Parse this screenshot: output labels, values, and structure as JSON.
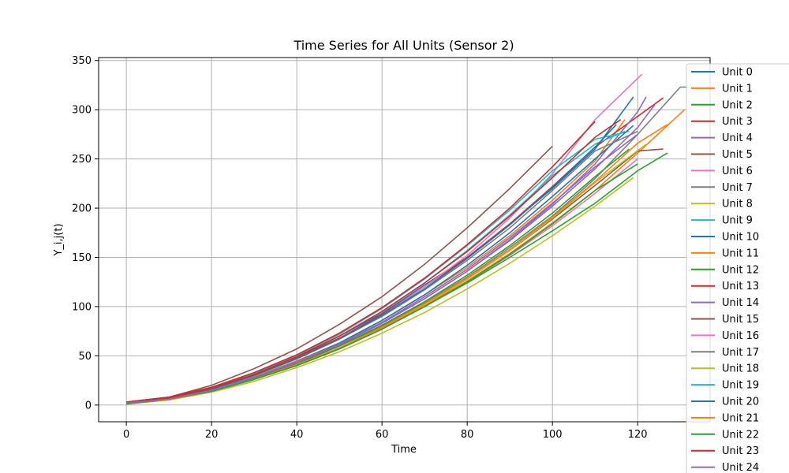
{
  "chart_data": {
    "type": "line",
    "title": "Time Series for All Units (Sensor 2)",
    "xlabel": "Time",
    "ylabel": "Y_i,j(t)",
    "xlim": [
      -6.5,
      137
    ],
    "ylim": [
      -17,
      353
    ],
    "xticks": [
      0,
      20,
      40,
      60,
      80,
      100,
      120
    ],
    "yticks": [
      0,
      50,
      100,
      150,
      200,
      250,
      300,
      350
    ],
    "grid": true,
    "legend_position": "right",
    "series": [
      {
        "name": "Unit 0",
        "color": "#1f77b4",
        "x": [
          0,
          10,
          20,
          30,
          40,
          50,
          60,
          70,
          80,
          90,
          100,
          110,
          119
        ],
        "y": [
          2,
          7,
          18,
          32,
          49,
          70,
          93,
          122,
          150,
          184,
          220,
          260,
          313
        ]
      },
      {
        "name": "Unit 1",
        "color": "#ff7f0e",
        "x": [
          0,
          10,
          20,
          30,
          40,
          50,
          60,
          70,
          80,
          90,
          100,
          110,
          117
        ],
        "y": [
          2,
          6,
          16,
          29,
          45,
          63,
          86,
          112,
          140,
          172,
          208,
          248,
          290
        ]
      },
      {
        "name": "Unit 2",
        "color": "#2ca02c",
        "x": [
          0,
          10,
          20,
          30,
          40,
          50,
          60,
          70,
          80,
          90,
          100,
          110,
          120,
          127
        ],
        "y": [
          2,
          6,
          14,
          26,
          40,
          57,
          78,
          100,
          124,
          150,
          177,
          205,
          238,
          256
        ]
      },
      {
        "name": "Unit 3",
        "color": "#d62728",
        "x": [
          0,
          10,
          20,
          30,
          40,
          50,
          60,
          70,
          80,
          90,
          100,
          110,
          126
        ],
        "y": [
          3,
          8,
          17,
          31,
          48,
          68,
          92,
          120,
          150,
          184,
          222,
          262,
          312
        ]
      },
      {
        "name": "Unit 4",
        "color": "#9467bd",
        "x": [
          0,
          10,
          20,
          30,
          40,
          50,
          60,
          70,
          80,
          90,
          100,
          110,
          120,
          122
        ],
        "y": [
          1,
          6,
          15,
          28,
          43,
          61,
          83,
          108,
          136,
          168,
          204,
          245,
          298,
          313
        ]
      },
      {
        "name": "Unit 5",
        "color": "#8c564b",
        "x": [
          0,
          10,
          20,
          30,
          40,
          50,
          60,
          70,
          80,
          90,
          100
        ],
        "y": [
          3,
          8,
          20,
          37,
          57,
          82,
          110,
          143,
          180,
          220,
          263
        ]
      },
      {
        "name": "Unit 6",
        "color": "#e377c2",
        "x": [
          0,
          10,
          20,
          30,
          40,
          50,
          60,
          70,
          80,
          90,
          100,
          110,
          121
        ],
        "y": [
          2,
          7,
          16,
          30,
          47,
          67,
          91,
          120,
          152,
          190,
          235,
          290,
          336
        ]
      },
      {
        "name": "Unit 7",
        "color": "#7f7f7f",
        "x": [
          0,
          10,
          20,
          30,
          40,
          50,
          60,
          70,
          80,
          90,
          100,
          110,
          120,
          130,
          132
        ],
        "y": [
          2,
          6,
          15,
          27,
          42,
          60,
          80,
          104,
          130,
          160,
          192,
          230,
          275,
          323,
          323
        ]
      },
      {
        "name": "Unit 8",
        "color": "#bcbd22",
        "x": [
          0,
          10,
          20,
          30,
          40,
          50,
          60,
          70,
          80,
          90,
          100,
          110,
          119
        ],
        "y": [
          1,
          5,
          13,
          24,
          38,
          54,
          73,
          94,
          118,
          144,
          172,
          202,
          231
        ]
      },
      {
        "name": "Unit 9",
        "color": "#17becf",
        "x": [
          0,
          10,
          20,
          30,
          40,
          50,
          60,
          70,
          80,
          90,
          100,
          110,
          118
        ],
        "y": [
          2,
          7,
          17,
          32,
          50,
          72,
          98,
          128,
          162,
          198,
          238,
          270,
          278
        ]
      },
      {
        "name": "Unit 10",
        "color": "#1f77b4",
        "x": [
          0,
          10,
          20,
          30,
          40,
          50,
          60,
          70,
          80,
          90,
          100,
          110,
          119
        ],
        "y": [
          2,
          6,
          15,
          28,
          44,
          63,
          86,
          112,
          142,
          175,
          212,
          250,
          284
        ]
      },
      {
        "name": "Unit 11",
        "color": "#ff7f0e",
        "x": [
          0,
          10,
          20,
          30,
          40,
          50,
          60,
          70,
          80,
          90,
          100,
          110,
          120,
          131
        ],
        "y": [
          2,
          6,
          14,
          26,
          41,
          58,
          78,
          101,
          126,
          154,
          185,
          218,
          256,
          300
        ]
      },
      {
        "name": "Unit 12",
        "color": "#2ca02c",
        "x": [
          0,
          10,
          20,
          30,
          40,
          50,
          60,
          70,
          80,
          90,
          100,
          110,
          118
        ],
        "y": [
          2,
          6,
          15,
          27,
          42,
          60,
          81,
          105,
          132,
          162,
          195,
          232,
          260
        ]
      },
      {
        "name": "Unit 13",
        "color": "#d62728",
        "x": [
          0,
          10,
          20,
          30,
          40,
          50,
          60,
          70,
          80,
          90,
          100,
          110
        ],
        "y": [
          3,
          8,
          18,
          33,
          51,
          73,
          99,
          129,
          163,
          200,
          242,
          288
        ]
      },
      {
        "name": "Unit 14",
        "color": "#9467bd",
        "x": [
          0,
          10,
          20,
          30,
          40,
          50,
          60,
          70,
          80,
          90,
          100,
          110,
          120
        ],
        "y": [
          2,
          6,
          15,
          28,
          44,
          62,
          84,
          110,
          138,
          170,
          205,
          242,
          275
        ]
      },
      {
        "name": "Unit 15",
        "color": "#8c564b",
        "x": [
          0,
          10,
          20,
          30,
          40,
          50,
          60,
          70,
          80,
          90,
          100,
          110,
          120,
          126
        ],
        "y": [
          2,
          6,
          14,
          26,
          41,
          58,
          79,
          102,
          128,
          157,
          189,
          223,
          258,
          260
        ]
      },
      {
        "name": "Unit 16",
        "color": "#e377c2",
        "x": [
          0,
          10,
          20,
          30,
          40,
          50,
          60,
          70,
          80,
          90,
          100,
          110,
          120
        ],
        "y": [
          2,
          6,
          14,
          26,
          40,
          57,
          77,
          100,
          125,
          152,
          182,
          215,
          250
        ]
      },
      {
        "name": "Unit 17",
        "color": "#7f7f7f",
        "x": [
          0,
          10,
          20,
          30,
          40,
          50,
          60,
          70,
          80,
          90,
          100,
          110,
          120
        ],
        "y": [
          2,
          7,
          16,
          30,
          47,
          67,
          90,
          117,
          147,
          180,
          218,
          258,
          278
        ]
      },
      {
        "name": "Unit 18",
        "color": "#bcbd22",
        "x": [
          0,
          10,
          20,
          30,
          40,
          50,
          60,
          70,
          80,
          90,
          100,
          110,
          122
        ],
        "y": [
          1,
          5,
          14,
          26,
          41,
          58,
          79,
          102,
          128,
          157,
          190,
          226,
          265
        ]
      },
      {
        "name": "Unit 19",
        "color": "#17becf",
        "x": [
          0,
          10,
          20,
          30,
          40,
          50,
          60,
          70,
          80,
          90,
          100,
          110,
          117
        ],
        "y": [
          2,
          7,
          17,
          31,
          49,
          70,
          95,
          124,
          157,
          193,
          233,
          265,
          278
        ]
      },
      {
        "name": "Unit 20",
        "color": "#1f77b4",
        "x": [
          0,
          10,
          20,
          30,
          40,
          50,
          60,
          70,
          80,
          90,
          100,
          110,
          115
        ],
        "y": [
          2,
          7,
          16,
          30,
          47,
          67,
          91,
          118,
          149,
          183,
          221,
          262,
          285
        ]
      },
      {
        "name": "Unit 21",
        "color": "#ff7f0e",
        "x": [
          0,
          10,
          20,
          30,
          40,
          50,
          60,
          70,
          80,
          90,
          100,
          110,
          120,
          127
        ],
        "y": [
          2,
          6,
          14,
          26,
          41,
          58,
          79,
          103,
          129,
          158,
          191,
          227,
          266,
          285
        ]
      },
      {
        "name": "Unit 22",
        "color": "#2ca02c",
        "x": [
          0,
          10,
          20,
          30,
          40,
          50,
          60,
          70,
          80,
          90,
          100,
          110,
          120
        ],
        "y": [
          1,
          6,
          14,
          26,
          40,
          57,
          77,
          100,
          125,
          153,
          184,
          218,
          245
        ]
      },
      {
        "name": "Unit 23",
        "color": "#d62728",
        "x": [
          0,
          10,
          20,
          30,
          40,
          50,
          60,
          70,
          80,
          90,
          100,
          110,
          116
        ],
        "y": [
          2,
          7,
          17,
          31,
          49,
          70,
          95,
          124,
          156,
          192,
          231,
          272,
          290
        ]
      },
      {
        "name": "Unit 24",
        "color": "#9467bd",
        "x": [
          0,
          10,
          20,
          30,
          40,
          50,
          60,
          70,
          80,
          90,
          100,
          110,
          120,
          124
        ],
        "y": [
          2,
          6,
          15,
          28,
          43,
          62,
          83,
          108,
          136,
          167,
          202,
          240,
          282,
          305
        ]
      }
    ]
  }
}
